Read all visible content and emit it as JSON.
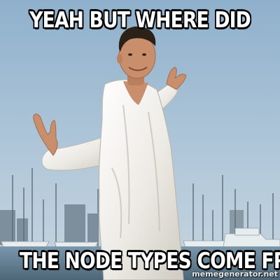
{
  "meme": {
    "top_text": "YEAH BUT WHERE DID",
    "bottom_text": "THE NODE TYPES COME FROM?",
    "watermark": "memegenerator.net"
  },
  "colors": {
    "sky": "#a9c3d8",
    "water": "#6f8ea6",
    "shirt": "#f1efea",
    "skin": "#c98e6c",
    "hair": "#2b2118",
    "caption_fill": "#ffffff",
    "caption_outline": "#000000"
  }
}
